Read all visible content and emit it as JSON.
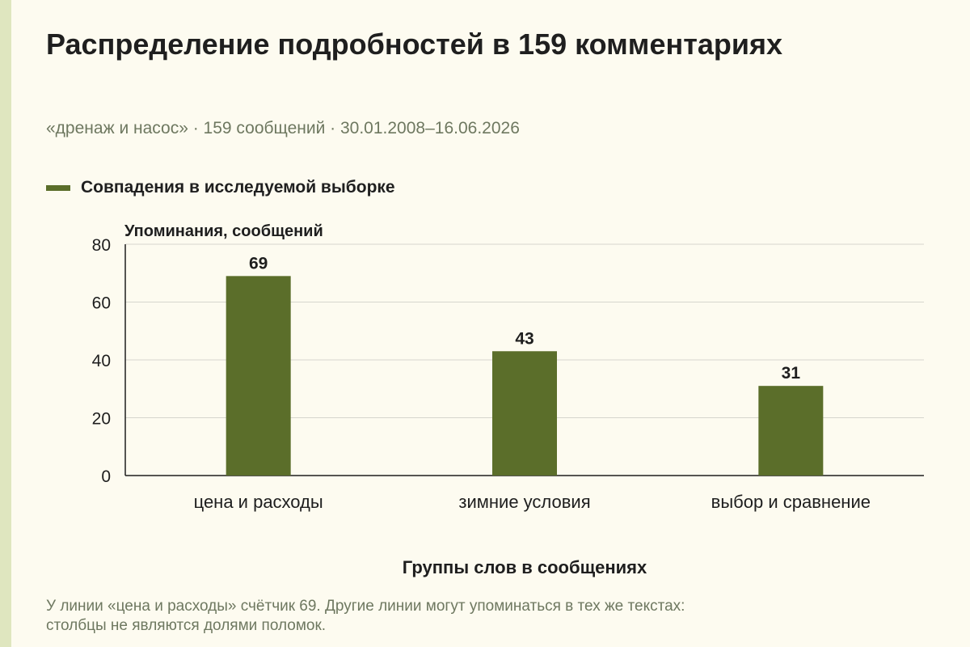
{
  "title": "Распределение подробностей в 159 комментариях",
  "subtitle": "«дренаж и насос» · 159 сообщений · 30.01.2008–16.06.2026",
  "legend": {
    "label": "Совпадения в исследуемой выборке",
    "color": "#5b6e2a"
  },
  "note_line1": "У линии «цена и расходы» счётчик 69. Другие линии могут упоминаться в тех же текстах:",
  "note_line2": "столбцы не являются долями поломок.",
  "chart_data": {
    "type": "bar",
    "categories": [
      "цена и расходы",
      "зимние условия",
      "выбор и сравнение"
    ],
    "series": [
      {
        "name": "Совпадения в исследуемой выборке",
        "values": [
          69,
          43,
          31
        ]
      }
    ],
    "ylabel": "Упоминания, сообщений",
    "xlabel": "Группы слов в сообщениях",
    "ylim": [
      0,
      80
    ],
    "yticks": [
      0,
      20,
      40,
      60,
      80
    ],
    "grid": true,
    "bar_color": "#5b6e2a",
    "data_labels": true
  }
}
